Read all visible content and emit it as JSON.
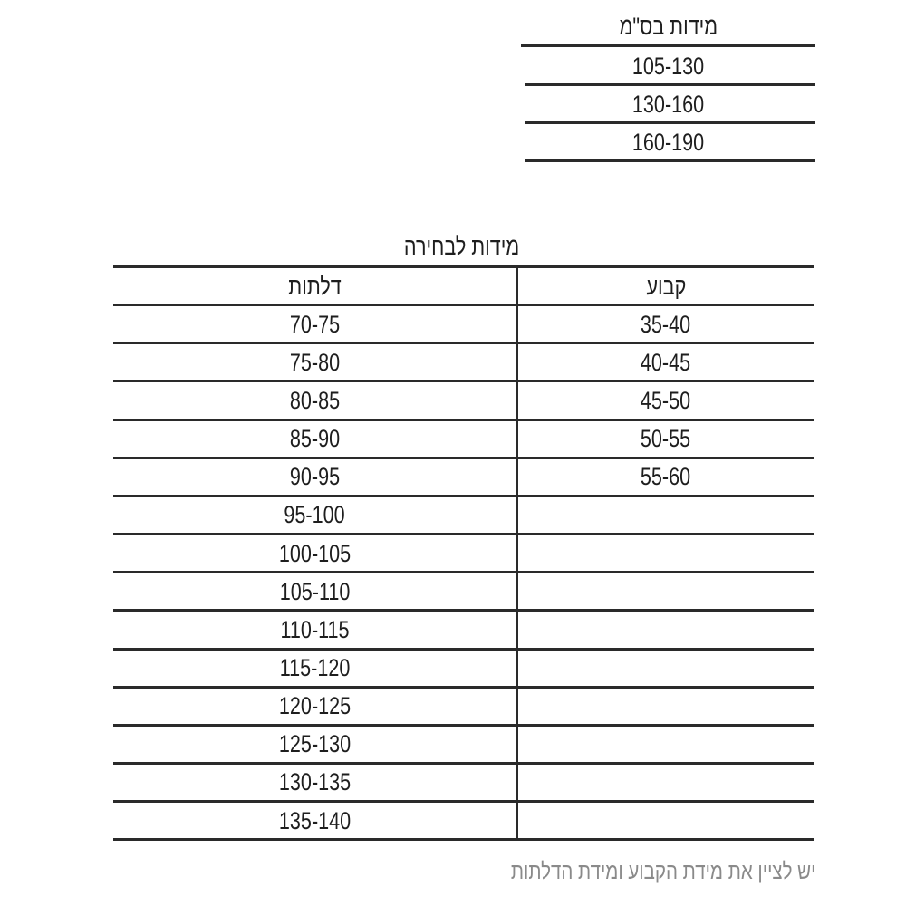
{
  "size_table": {
    "header": "מידות בס\"מ",
    "rows": [
      "105-130",
      "130-160",
      "160-190"
    ]
  },
  "options_table": {
    "title": "מידות לבחירה",
    "columns": {
      "fixed": "קבוע",
      "doors": "דלתות"
    },
    "fixed": [
      "35-40",
      "40-45",
      "45-50",
      "50-55",
      "55-60"
    ],
    "doors": [
      "70-75",
      "75-80",
      "80-85",
      "85-90",
      "90-95",
      "95-100",
      "100-105",
      "105-110",
      "110-115",
      "115-120",
      "120-125",
      "125-130",
      "130-135",
      "135-140"
    ]
  },
  "footer_note": "יש לציין את מידת הקבוע ומידת הדלתות"
}
